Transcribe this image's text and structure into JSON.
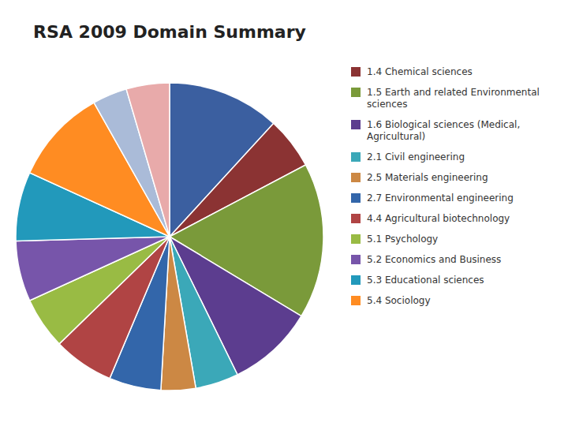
{
  "chart_data": {
    "type": "pie",
    "title": "RSA 2009 Domain Summary",
    "categories": [
      null,
      "1.4 Chemical sciences",
      "1.5 Earth and related Environmental\nsciences",
      "1.6 Biological sciences (Medical,\nAgricultural)",
      "2.1 Civil engineering",
      "2.5 Materials engineering",
      "2.7 Environmental engineering",
      "4.4 Agricultural biotechnology",
      "5.1 Psychology",
      "5.2 Economics and Business",
      "5.3 Educational sciences",
      "5.4 Sociology",
      null,
      null
    ],
    "values": [
      13,
      6,
      18,
      10,
      5,
      4,
      6,
      7,
      6,
      7,
      8,
      11,
      4,
      5
    ],
    "colors": [
      "#3B5FA0",
      "#8B3333",
      "#7A9A3A",
      "#5C3D8F",
      "#3BA8B8",
      "#CC8844",
      "#3366AA",
      "#B04444",
      "#99BB44",
      "#7755AA",
      "#2299BB",
      "#FF8C22",
      "#AABBD8",
      "#E8AAAA"
    ],
    "legend": "right"
  }
}
